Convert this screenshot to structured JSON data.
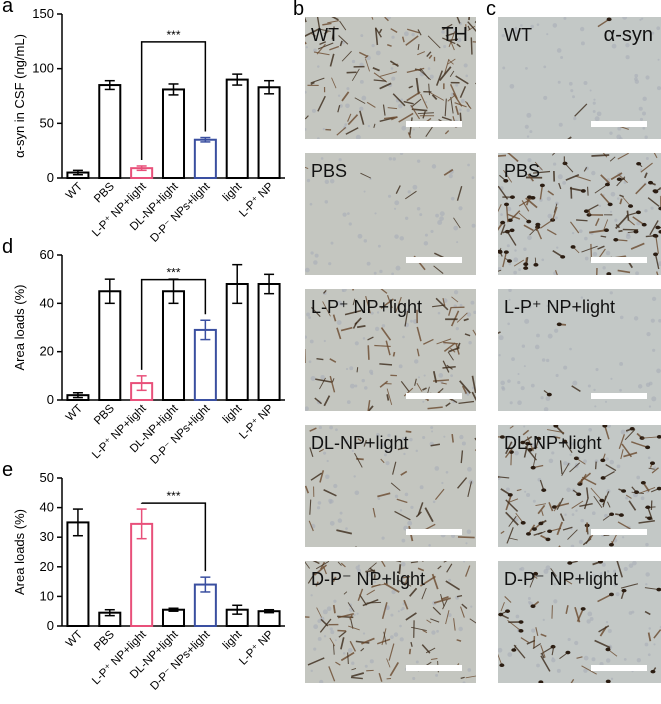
{
  "chart_data": [
    {
      "type": "bar",
      "panel": "a",
      "ylabel": "α-syn in CSF (ng/mL)",
      "categories": [
        "WT",
        "PBS",
        "L-P⁺ NP+light",
        "DL-NP+light",
        "D-P⁻ NPs+light",
        "light",
        "L-P⁺ NP"
      ],
      "values": [
        5,
        85,
        9,
        81,
        35,
        90,
        83
      ],
      "errors": [
        2,
        4,
        2,
        5,
        2,
        5,
        6
      ],
      "colors": [
        "#000000",
        "#000000",
        "#e8507a",
        "#000000",
        "#3a4fa0",
        "#000000",
        "#000000"
      ],
      "ylim": [
        0,
        150
      ],
      "yticks": [
        0,
        50,
        100,
        150
      ],
      "annotation": {
        "text": "***",
        "between": [
          "L-P⁺ NP+light",
          "D-P⁻ NPs+light"
        ]
      }
    },
    {
      "type": "bar",
      "panel": "d",
      "ylabel": "Area loads (%)",
      "categories": [
        "WT",
        "PBS",
        "L-P⁺ NP+light",
        "DL-NP+light",
        "D-P⁻ NPs+light",
        "light",
        "L-P⁺ NP"
      ],
      "values": [
        2,
        45,
        7,
        45,
        29,
        48,
        48
      ],
      "errors": [
        1,
        5,
        3,
        5,
        4,
        8,
        4
      ],
      "colors": [
        "#000000",
        "#000000",
        "#e8507a",
        "#000000",
        "#3a4fa0",
        "#000000",
        "#000000"
      ],
      "ylim": [
        0,
        60
      ],
      "yticks": [
        0,
        20,
        40,
        60
      ],
      "annotation": {
        "text": "***",
        "between": [
          "L-P⁺ NP+light",
          "D-P⁻ NPs+light"
        ]
      }
    },
    {
      "type": "bar",
      "panel": "e",
      "ylabel": "Area loads (%)",
      "categories": [
        "WT",
        "PBS",
        "L-P⁺ NP+light",
        "DL-NP+light",
        "D-P⁻ NPs+light",
        "light",
        "L-P⁺ NP"
      ],
      "values": [
        35,
        4.5,
        34.5,
        5.5,
        14,
        5.5,
        5
      ],
      "errors": [
        4.5,
        1,
        5,
        0.5,
        2.5,
        1.5,
        0.5
      ],
      "colors": [
        "#000000",
        "#000000",
        "#e8507a",
        "#000000",
        "#3a4fa0",
        "#000000",
        "#000000"
      ],
      "ylim": [
        0,
        50
      ],
      "yticks": [
        0,
        10,
        20,
        30,
        40,
        50
      ],
      "annotation": {
        "text": "***",
        "between": [
          "L-P⁺ NP+light",
          "D-P⁻ NPs+light"
        ]
      }
    }
  ],
  "panels": [
    {
      "letter": "b",
      "marker": "TH",
      "rows": [
        "WT",
        "PBS",
        "L-P⁺ NP+light",
        "DL-NP+light",
        "D-P⁻ NP+light"
      ]
    },
    {
      "letter": "c",
      "marker": "α-syn",
      "rows": [
        "WT",
        "PBS",
        "L-P⁺ NP+light",
        "DL-NP+light",
        "D-P⁻ NP+light"
      ]
    }
  ]
}
